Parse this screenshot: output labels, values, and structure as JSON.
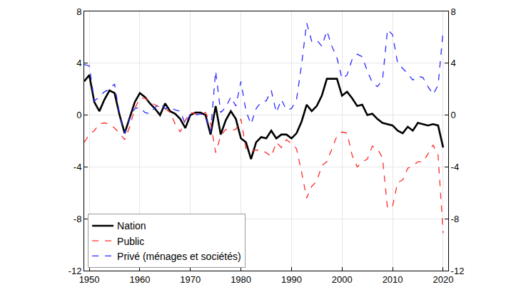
{
  "chart_data": {
    "type": "line",
    "x": [
      1949,
      1950,
      1951,
      1952,
      1953,
      1954,
      1955,
      1956,
      1957,
      1958,
      1959,
      1960,
      1961,
      1962,
      1963,
      1964,
      1965,
      1966,
      1967,
      1968,
      1969,
      1970,
      1971,
      1972,
      1973,
      1974,
      1975,
      1976,
      1977,
      1978,
      1979,
      1980,
      1981,
      1982,
      1983,
      1984,
      1985,
      1986,
      1987,
      1988,
      1989,
      1990,
      1991,
      1992,
      1993,
      1994,
      1995,
      1996,
      1997,
      1998,
      1999,
      2000,
      2001,
      2002,
      2003,
      2004,
      2005,
      2006,
      2007,
      2008,
      2009,
      2010,
      2011,
      2012,
      2013,
      2014,
      2015,
      2016,
      2017,
      2018,
      2019,
      2020
    ],
    "series": [
      {
        "name": "Nation",
        "color": "#000000",
        "line_style": "solid",
        "values": [
          2.6,
          3.1,
          1.0,
          0.3,
          1.2,
          1.9,
          1.7,
          0.0,
          -1.4,
          -0.2,
          1.0,
          1.7,
          1.4,
          0.9,
          0.5,
          0.0,
          0.9,
          0.3,
          0.1,
          -0.3,
          -1.0,
          0.0,
          0.2,
          0.2,
          0.0,
          -1.5,
          0.7,
          -1.5,
          -0.4,
          0.3,
          -0.3,
          -1.8,
          -2.1,
          -3.4,
          -2.1,
          -1.7,
          -1.8,
          -1.2,
          -1.8,
          -1.5,
          -1.5,
          -1.8,
          -1.4,
          -0.5,
          0.8,
          0.3,
          0.7,
          1.5,
          2.8,
          2.8,
          2.8,
          1.5,
          1.8,
          1.3,
          0.7,
          0.8,
          0.0,
          0.1,
          -0.3,
          -0.6,
          -0.7,
          -0.8,
          -1.2,
          -1.4,
          -0.9,
          -1.2,
          -0.6,
          -0.7,
          -0.8,
          -0.7,
          -0.8,
          -2.5
        ]
      },
      {
        "name": "Public",
        "color": "#ff2a2a",
        "line_style": "dash",
        "values": [
          -2.1,
          -1.5,
          -1.2,
          -0.7,
          -0.6,
          -0.7,
          -1.0,
          -1.4,
          -1.9,
          -0.9,
          0.5,
          1.3,
          1.3,
          1.0,
          0.8,
          0.6,
          0.5,
          0.2,
          -0.7,
          -1.3,
          -0.4,
          0.2,
          0.1,
          0.1,
          0.2,
          -0.6,
          -2.9,
          -1.6,
          -1.1,
          -1.2,
          -1.1,
          -0.3,
          -2.6,
          -2.8,
          -2.7,
          -2.7,
          -2.9,
          -3.2,
          -2.1,
          -2.5,
          -1.9,
          -2.2,
          -2.6,
          -4.4,
          -6.4,
          -5.5,
          -5.1,
          -3.9,
          -3.6,
          -2.6,
          -1.6,
          -1.3,
          -1.4,
          -3.1,
          -4.0,
          -3.6,
          -3.4,
          -2.4,
          -2.6,
          -3.3,
          -7.2,
          -7.0,
          -5.2,
          -5.0,
          -4.1,
          -3.9,
          -3.6,
          -3.6,
          -3.0,
          -2.3,
          -3.1,
          -9.1
        ]
      },
      {
        "name": "Privé (ménages et sociétés)",
        "color": "#2a2aff",
        "line_style": "dash",
        "values": [
          3.9,
          3.8,
          1.1,
          1.4,
          1.8,
          2.0,
          2.4,
          0.0,
          -1.4,
          -0.3,
          0.5,
          0.6,
          0.2,
          0.1,
          0.6,
          0.9,
          0.5,
          0.6,
          0.4,
          0.3,
          -0.7,
          0.1,
          0.0,
          0.1,
          -0.1,
          -1.3,
          3.4,
          0.2,
          0.6,
          1.4,
          0.7,
          2.6,
          0.3,
          -0.7,
          0.5,
          1.0,
          1.1,
          1.9,
          0.2,
          1.2,
          0.4,
          0.5,
          1.2,
          3.9,
          7.1,
          5.7,
          5.8,
          5.3,
          6.5,
          5.3,
          4.4,
          2.8,
          3.1,
          4.3,
          4.7,
          4.5,
          3.4,
          2.5,
          2.2,
          2.7,
          6.6,
          6.2,
          4.0,
          3.6,
          3.2,
          2.7,
          3.0,
          2.9,
          2.2,
          1.6,
          2.3,
          6.5
        ]
      }
    ],
    "xlim": [
      1949,
      2021
    ],
    "xticks": [
      1950,
      1960,
      1970,
      1980,
      1990,
      2000,
      2010,
      2020
    ],
    "ylim": [
      -12,
      8
    ],
    "yticks": [
      -12,
      -8,
      -4,
      0,
      4,
      8
    ],
    "y2lim": [
      -12,
      8
    ],
    "y2ticks": [
      -12,
      -8,
      -4,
      0,
      4,
      8
    ],
    "grid": true,
    "legend": "bottom left"
  }
}
